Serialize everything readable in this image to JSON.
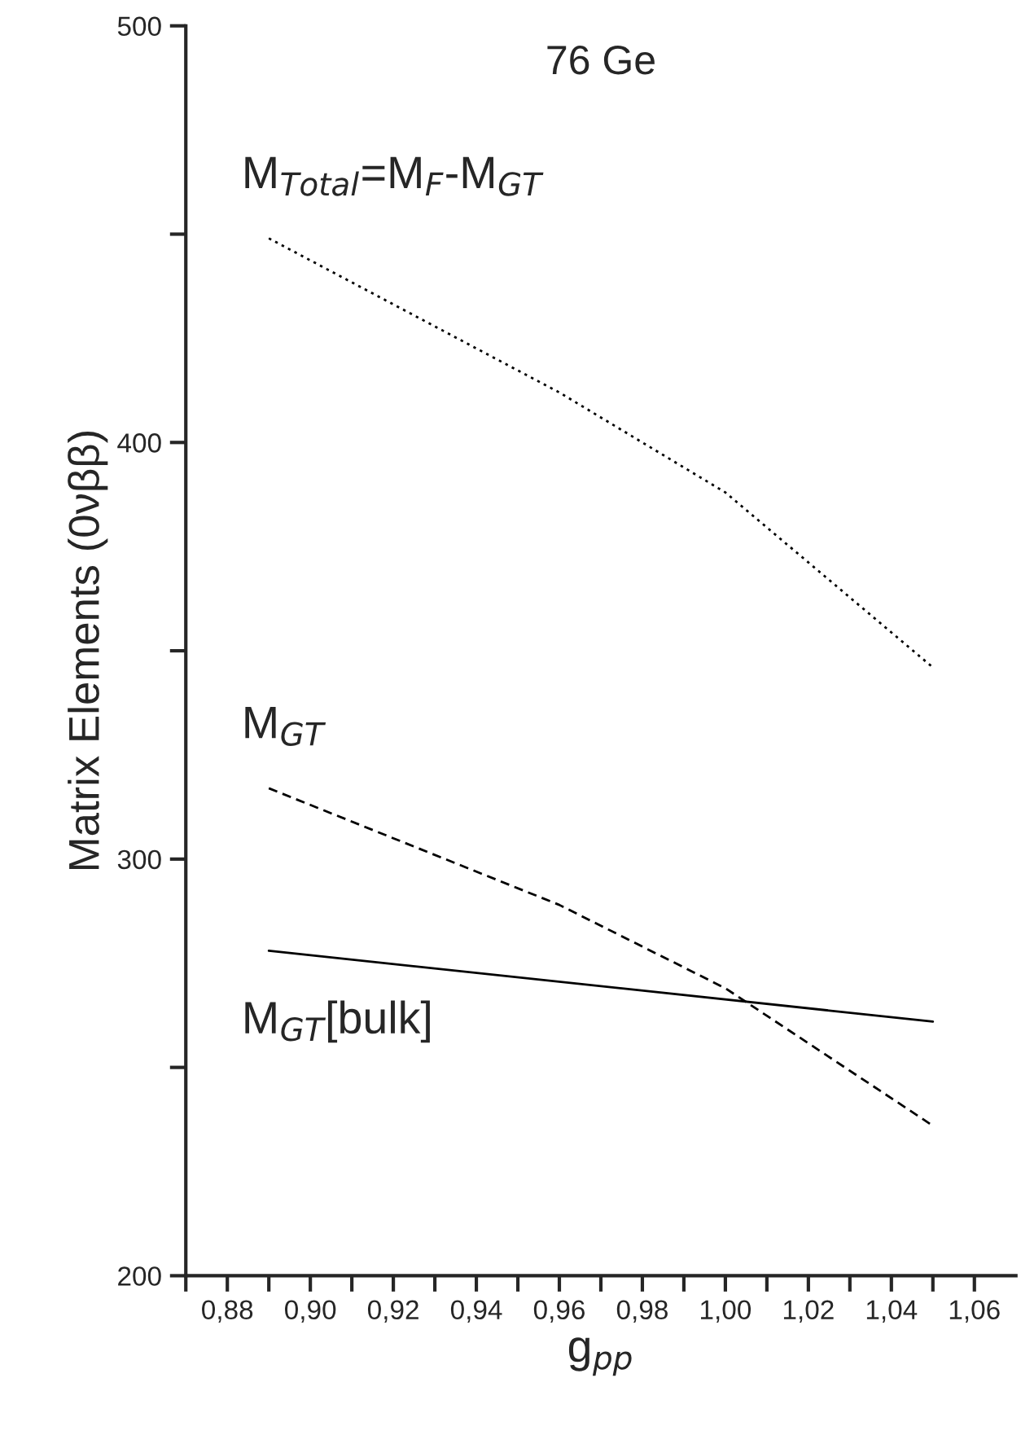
{
  "chart_data": {
    "type": "line",
    "title": "76 Ge",
    "xlabel": "g$_{pp}$",
    "ylabel": "Matrix Elements (0νββ)",
    "xlim": [
      0.87,
      1.07
    ],
    "ylim": [
      200,
      500
    ],
    "xticks": [
      {
        "value": 0.87,
        "label": null
      },
      {
        "value": 0.88,
        "label": "0,88"
      },
      {
        "value": 0.89,
        "label": null
      },
      {
        "value": 0.9,
        "label": "0,90"
      },
      {
        "value": 0.91,
        "label": null
      },
      {
        "value": 0.92,
        "label": "0,92"
      },
      {
        "value": 0.93,
        "label": null
      },
      {
        "value": 0.94,
        "label": "0,94"
      },
      {
        "value": 0.95,
        "label": null
      },
      {
        "value": 0.96,
        "label": "0,96"
      },
      {
        "value": 0.97,
        "label": null
      },
      {
        "value": 0.98,
        "label": "0,98"
      },
      {
        "value": 0.99,
        "label": null
      },
      {
        "value": 1.0,
        "label": "1,00"
      },
      {
        "value": 1.01,
        "label": null
      },
      {
        "value": 1.02,
        "label": "1,02"
      },
      {
        "value": 1.03,
        "label": null
      },
      {
        "value": 1.04,
        "label": "1,04"
      },
      {
        "value": 1.05,
        "label": null
      },
      {
        "value": 1.06,
        "label": "1,06"
      }
    ],
    "yticks": [
      200,
      {
        "value": 250,
        "label": null
      },
      300,
      {
        "value": 350,
        "label": null
      },
      400,
      {
        "value": 450,
        "label": null
      },
      500
    ],
    "grid": false,
    "legend": false,
    "marker": "none",
    "series": [
      {
        "name": "M$_{Total}$=M$_{F}$-M$_{GT}$",
        "color": "#000000",
        "line_style": "dotted",
        "x": [
          0.89,
          0.96,
          1.0,
          1.05
        ],
        "values": [
          449,
          412,
          388,
          346
        ]
      },
      {
        "name": "M$_{GT}$",
        "color": "#000000",
        "line_style": "dashed",
        "x": [
          0.89,
          0.96,
          1.0,
          1.05
        ],
        "values": [
          317,
          289,
          269,
          236
        ]
      },
      {
        "name": "M$_{GT}$[bulk]",
        "color": "#000000",
        "line_style": "solid",
        "x": [
          0.89,
          1.05
        ],
        "values": [
          278,
          261
        ]
      }
    ]
  }
}
